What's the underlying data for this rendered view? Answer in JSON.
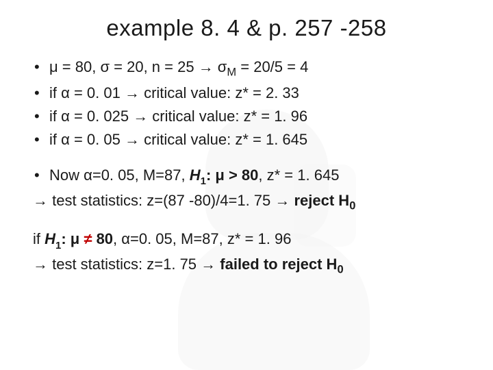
{
  "title": "example 8. 4 & p. 257 -258",
  "group1": {
    "l1a": "μ = 80, σ = 20, n = 25 ",
    "l1arrow": "→",
    "l1b": " σ",
    "l1m": "M",
    "l1c": " = 20/5 = 4",
    "l2a": "if α = 0. 01 ",
    "l2arrow": "→",
    "l2b": " critical value: z* = 2. 33",
    "l3a": "if α = 0. 025 ",
    "l3arrow": "→",
    "l3b": " critical value: z* = 1. 96",
    "l4a": "if α = 0. 05 ",
    "l4arrow": "→",
    "l4b": " critical value: z* = 1. 645"
  },
  "group2": {
    "l5a": "Now α=0. 05, M=87, ",
    "l5h": "H",
    "l5s": "1",
    "l5colon": ":  ",
    "l5mu": "μ > 80",
    "l5b": ", z* = 1. 645",
    "l6arrow": "→",
    "l6a": " test statistics: z=(87 -80)/4=1. 75 ",
    "l6arrow2": "→",
    "l6b": " reject H",
    "l6zero": "0"
  },
  "group3": {
    "l7a": "if ",
    "l7h": "H",
    "l7s": "1",
    "l7colon": ":  ",
    "l7mu": "μ ",
    "l7ne": "≠",
    "l7muv": " 80",
    "l7b": ", α=0. 05, M=87, z* = 1. 96",
    "l8arrow": "→",
    "l8a": " test statistics: z=1. 75 ",
    "l8arrow2": "→",
    "l8b": " failed to reject H",
    "l8zero": "0"
  }
}
